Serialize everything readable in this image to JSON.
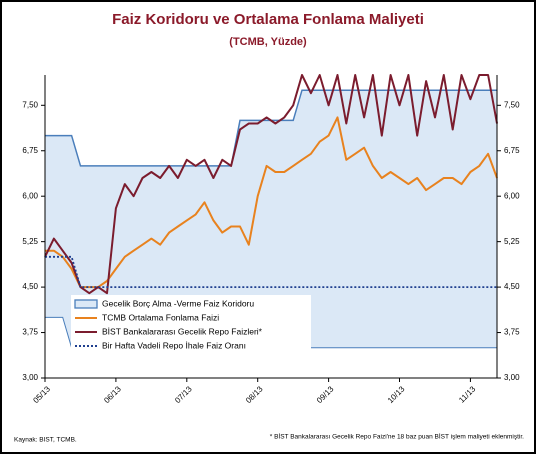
{
  "chart_data": {
    "type": "line",
    "title": "Faiz Koridoru ve Ortalama Fonlama Maliyeti",
    "subtitle": "(TCMB, Yüzde)",
    "source": "Kaynak: BIST, TCMB.",
    "note": "* BİST Bankalararası Gecelik Repo Faizi'ne 18 baz puan BİST işlem maliyeti eklenmiştir.",
    "categories": [
      "05/13",
      null,
      null,
      null,
      null,
      null,
      null,
      null,
      "06/13",
      null,
      null,
      null,
      null,
      null,
      null,
      null,
      "07/13",
      null,
      null,
      null,
      null,
      null,
      null,
      null,
      "08/13",
      null,
      null,
      null,
      null,
      null,
      null,
      null,
      "09/13",
      null,
      null,
      null,
      null,
      null,
      null,
      null,
      "10/13",
      null,
      null,
      null,
      null,
      null,
      null,
      null,
      "11/13",
      null,
      null,
      null
    ],
    "ylim": [
      3,
      8
    ],
    "yticks": [
      {
        "value": 3,
        "label": "3,00"
      },
      {
        "value": 3.75,
        "label": "3,75"
      },
      {
        "value": 4.5,
        "label": "4,50"
      },
      {
        "value": 5.25,
        "label": "5,25"
      },
      {
        "value": 6,
        "label": "6,00"
      },
      {
        "value": 6.75,
        "label": "6,75"
      },
      {
        "value": 7.5,
        "label": "7,50"
      }
    ],
    "grid": false,
    "legend": "lower-left",
    "series": [
      {
        "name": "Gecelik Borç Alma -Verme Faiz Koridoru",
        "type": "area",
        "color": "#4a7ebb",
        "fill": "#dbe8f6",
        "values": [
          7,
          7,
          7,
          7,
          6.5,
          6.5,
          6.5,
          6.5,
          6.5,
          6.5,
          6.5,
          6.5,
          6.5,
          6.5,
          6.5,
          6.5,
          6.5,
          6.5,
          6.5,
          6.5,
          6.5,
          6.5,
          7.25,
          7.25,
          7.25,
          7.25,
          7.25,
          7.25,
          7.25,
          7.75,
          7.75,
          7.75,
          7.75,
          7.75,
          7.75,
          7.75,
          7.75,
          7.75,
          7.75,
          7.75,
          7.75,
          7.75,
          7.75,
          7.75,
          7.75,
          7.75,
          7.75,
          7.75,
          7.75,
          7.75,
          7.75,
          7.75
        ],
        "low": [
          4,
          4,
          4,
          3.5,
          3.5,
          3.5,
          3.5,
          3.5,
          3.5,
          3.5,
          3.5,
          3.5,
          3.5,
          3.5,
          3.5,
          3.5,
          3.5,
          3.5,
          3.5,
          3.5,
          3.5,
          3.5,
          3.5,
          3.5,
          3.5,
          3.5,
          3.5,
          3.5,
          3.5,
          3.5,
          3.5,
          3.5,
          3.5,
          3.5,
          3.5,
          3.5,
          3.5,
          3.5,
          3.5,
          3.5,
          3.5,
          3.5,
          3.5,
          3.5,
          3.5,
          3.5,
          3.5,
          3.5,
          3.5,
          3.5,
          3.5,
          3.5
        ]
      },
      {
        "name": "TCMB Ortalama Fonlama Faizi",
        "type": "line",
        "color": "#e8821e",
        "values": [
          5.1,
          5.1,
          5.0,
          4.8,
          4.5,
          4.5,
          4.5,
          4.6,
          4.8,
          5.0,
          5.1,
          5.2,
          5.3,
          5.2,
          5.4,
          5.5,
          5.6,
          5.7,
          5.9,
          5.6,
          5.4,
          5.5,
          5.5,
          5.2,
          6.0,
          6.5,
          6.4,
          6.4,
          6.5,
          6.6,
          6.7,
          6.9,
          7.0,
          7.3,
          6.6,
          6.7,
          6.8,
          6.5,
          6.3,
          6.4,
          6.3,
          6.2,
          6.3,
          6.1,
          6.2,
          6.3,
          6.3,
          6.2,
          6.4,
          6.5,
          6.7,
          6.3
        ]
      },
      {
        "name": "BİST Bankalararası Gecelik Repo Faizleri*",
        "type": "line",
        "color": "#7b1c2e",
        "values": [
          5.0,
          5.3,
          5.1,
          4.9,
          4.5,
          4.4,
          4.5,
          4.4,
          5.8,
          6.2,
          6.0,
          6.3,
          6.4,
          6.3,
          6.5,
          6.3,
          6.6,
          6.5,
          6.6,
          6.3,
          6.6,
          6.5,
          7.1,
          7.2,
          7.2,
          7.3,
          7.2,
          7.3,
          7.5,
          8.0,
          7.7,
          8.0,
          7.5,
          8.0,
          7.2,
          8.0,
          7.3,
          8.0,
          7.0,
          8.0,
          7.5,
          8.0,
          7.0,
          7.9,
          7.3,
          8.0,
          7.1,
          8.0,
          7.6,
          8.0,
          8.0,
          7.2
        ]
      },
      {
        "name": "Bir Hafta Vadeli Repo İhale Faiz Oranı",
        "type": "line",
        "style": "dotted",
        "color": "#1f3f8f",
        "values": [
          5,
          5,
          5,
          5,
          4.5,
          4.5,
          4.5,
          4.5,
          4.5,
          4.5,
          4.5,
          4.5,
          4.5,
          4.5,
          4.5,
          4.5,
          4.5,
          4.5,
          4.5,
          4.5,
          4.5,
          4.5,
          4.5,
          4.5,
          4.5,
          4.5,
          4.5,
          4.5,
          4.5,
          4.5,
          4.5,
          4.5,
          4.5,
          4.5,
          4.5,
          4.5,
          4.5,
          4.5,
          4.5,
          4.5,
          4.5,
          4.5,
          4.5,
          4.5,
          4.5,
          4.5,
          4.5,
          4.5,
          4.5,
          4.5,
          4.5,
          4.5
        ]
      }
    ]
  }
}
